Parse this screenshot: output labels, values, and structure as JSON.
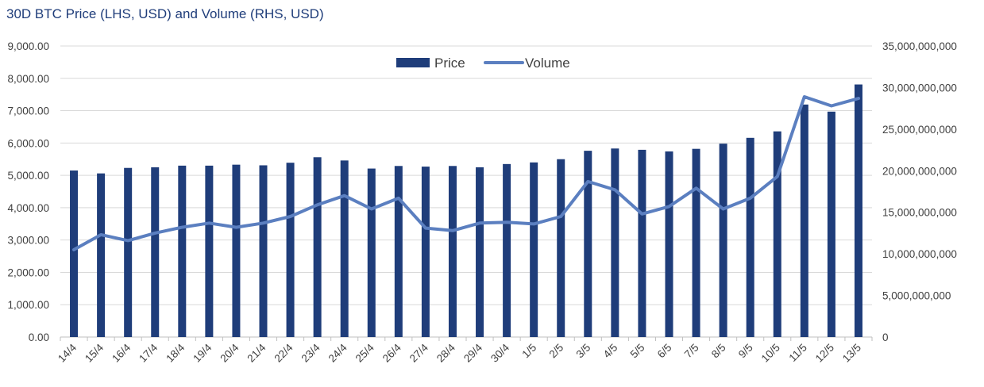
{
  "chart_data": {
    "type": "bar",
    "title": "30D BTC Price (LHS, USD) and Volume (RHS, USD)",
    "categories": [
      "14/4",
      "15/4",
      "16/4",
      "17/4",
      "18/4",
      "19/4",
      "20/4",
      "21/4",
      "22/4",
      "23/4",
      "24/4",
      "25/4",
      "26/4",
      "27/4",
      "28/4",
      "29/4",
      "30/4",
      "1/5",
      "2/5",
      "3/5",
      "4/5",
      "5/5",
      "6/5",
      "7/5",
      "8/5",
      "9/5",
      "10/5",
      "11/5",
      "12/5",
      "13/5"
    ],
    "series": [
      {
        "name": "Price",
        "kind": "bar",
        "axis": "left",
        "color": "#1f3d7a",
        "values": [
          5150,
          5060,
          5230,
          5250,
          5300,
          5300,
          5330,
          5310,
          5390,
          5560,
          5460,
          5210,
          5290,
          5270,
          5290,
          5250,
          5350,
          5400,
          5500,
          5760,
          5830,
          5790,
          5740,
          5820,
          5980,
          6160,
          6360,
          7190,
          6970,
          7810
        ]
      },
      {
        "name": "Volume",
        "kind": "line",
        "axis": "right",
        "color": "#5b7fc0",
        "values": [
          10500000000,
          12300000000,
          11600000000,
          12500000000,
          13200000000,
          13700000000,
          13200000000,
          13700000000,
          14500000000,
          15900000000,
          17000000000,
          15400000000,
          16700000000,
          13100000000,
          12800000000,
          13700000000,
          13800000000,
          13600000000,
          14500000000,
          18700000000,
          17700000000,
          14800000000,
          15700000000,
          17900000000,
          15400000000,
          16700000000,
          19300000000,
          28900000000,
          27800000000,
          28700000000
        ]
      }
    ],
    "y_left": {
      "ylim": [
        0,
        9000
      ],
      "ticks": [
        0,
        1000,
        2000,
        3000,
        4000,
        5000,
        6000,
        7000,
        8000,
        9000
      ],
      "tick_labels": [
        "0.00",
        "1,000.00",
        "2,000.00",
        "3,000.00",
        "4,000.00",
        "5,000.00",
        "6,000.00",
        "7,000.00",
        "8,000.00",
        "9,000.00"
      ]
    },
    "y_right": {
      "ylim": [
        0,
        35000000000
      ],
      "ticks": [
        0,
        5000000000,
        10000000000,
        15000000000,
        20000000000,
        25000000000,
        30000000000,
        35000000000
      ],
      "tick_labels": [
        "0",
        "5,000,000,000",
        "10,000,000,000",
        "15,000,000,000",
        "20,000,000,000",
        "25,000,000,000",
        "30,000,000,000",
        "35,000,000,000"
      ]
    },
    "grid": true,
    "legend": {
      "position": "top-center",
      "entries": [
        "Price",
        "Volume"
      ]
    },
    "gridline_color": "#d9d9d9",
    "axis_line_color": "#bfbfbf"
  }
}
